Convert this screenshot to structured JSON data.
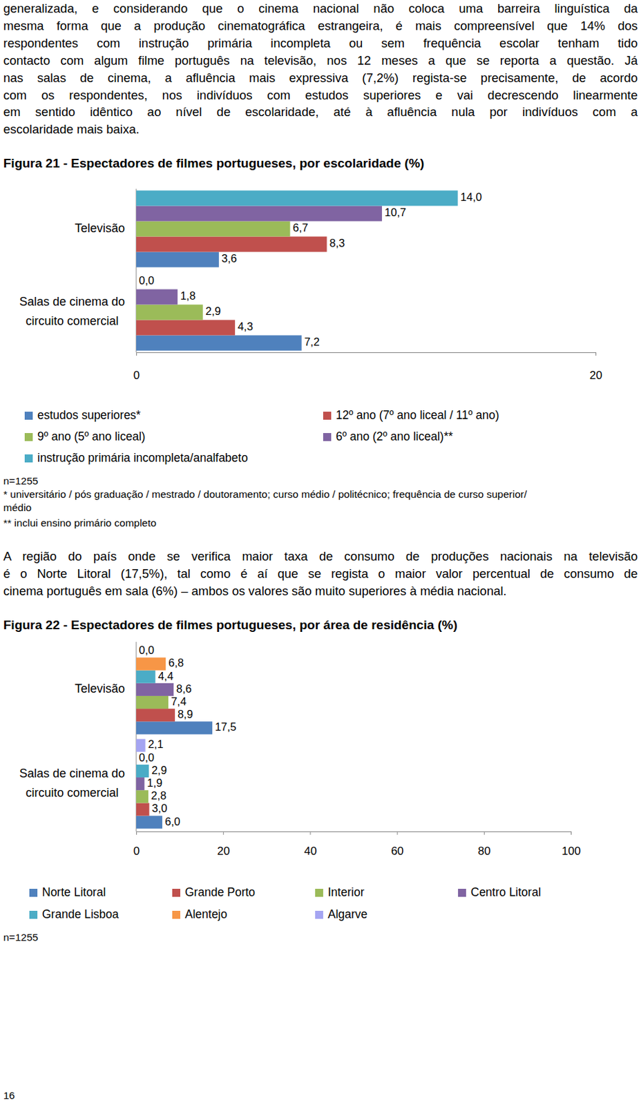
{
  "paragraphs": [
    [
      "generalizada, e considerando que o cinema nacional não coloca uma barreira linguística da",
      "mesma forma que a produção cinematográfica estrangeira, é mais compreensível que 14% dos",
      "respondentes com instrução primária incompleta ou sem frequência escolar tenham tido",
      "contacto com algum filme português na televisão, nos 12 meses a que se reporta a questão. Já",
      "nas salas de cinema, a afluência mais expressiva (7,2%) regista-se precisamente, de acordo",
      "com os respondentes, nos indivíduos com estudos superiores e vai decrescendo linearmente",
      "em sentido idêntico ao nível de escolaridade, até à afluência nula por indivíduos com a",
      "escolaridade mais baixa."
    ],
    [
      "A região do país onde se verifica maior taxa de consumo de produções nacionais na televisão",
      "é o Norte Litoral (17,5%), tal como é aí que se regista o maior valor percentual de consumo de",
      "cinema português em sala (6%) – ambos os valores são muito superiores à média nacional."
    ]
  ],
  "chart_data": [
    {
      "type": "bar",
      "orientation": "horizontal",
      "data_labels": true,
      "legend": "bottom",
      "title": "Figura 21 - Espectadores de filmes portugueses, por escolaridade (%)",
      "categories": [
        "Televisão",
        "Salas de cinema do\ncircuito comercial"
      ],
      "series": [
        {
          "name": "estudos superiores*",
          "color": "#4F81BD",
          "values": [
            3.6,
            7.2
          ],
          "value_labels": [
            "3,6",
            "7,2"
          ]
        },
        {
          "name": "12º ano (7º ano liceal / 11º ano)",
          "color": "#C0504D",
          "values": [
            8.3,
            4.3
          ],
          "value_labels": [
            "8,3",
            "4,3"
          ]
        },
        {
          "name": "9º ano (5º ano liceal)",
          "color": "#9BBB59",
          "values": [
            6.7,
            2.9
          ],
          "value_labels": [
            "6,7",
            "2,9"
          ]
        },
        {
          "name": "6º ano (2º ano liceal)**",
          "color": "#8064A2",
          "values": [
            10.7,
            1.8
          ],
          "value_labels": [
            "10,7",
            "1,8"
          ]
        },
        {
          "name": "instrução primária incompleta/analfabeto",
          "color": "#4BACC6",
          "values": [
            14.0,
            0.0
          ],
          "value_labels": [
            "14,0",
            "0,0"
          ]
        }
      ],
      "xlim": [
        0,
        20
      ],
      "xticks": [
        0,
        20
      ],
      "notes": [
        "n=1255",
        "* universitário / pós graduação / mestrado / doutoramento; curso médio / politécnico; frequência de curso superior/",
        "médio",
        "** inclui ensino primário completo"
      ]
    },
    {
      "type": "bar",
      "orientation": "horizontal",
      "data_labels": true,
      "legend": "bottom",
      "title": "Figura 22 - Espectadores de filmes portugueses, por área de residência (%)",
      "categories": [
        "Televisão",
        "Salas de cinema do\ncircuito comercial"
      ],
      "series": [
        {
          "name": "Norte Litoral",
          "color": "#4F81BD",
          "values": [
            17.5,
            6.0
          ],
          "value_labels": [
            "17,5",
            "6,0"
          ]
        },
        {
          "name": "Grande Porto",
          "color": "#C0504D",
          "values": [
            8.9,
            3.0
          ],
          "value_labels": [
            "8,9",
            "3,0"
          ]
        },
        {
          "name": "Interior",
          "color": "#9BBB59",
          "values": [
            7.4,
            2.8
          ],
          "value_labels": [
            "7,4",
            "2,8"
          ]
        },
        {
          "name": "Centro Litoral",
          "color": "#8064A2",
          "values": [
            8.6,
            1.9
          ],
          "value_labels": [
            "8,6",
            "1,9"
          ]
        },
        {
          "name": "Grande Lisboa",
          "color": "#4BACC6",
          "values": [
            4.4,
            2.9
          ],
          "value_labels": [
            "4,4",
            "2,9"
          ]
        },
        {
          "name": "Alentejo",
          "color": "#F79646",
          "values": [
            6.8,
            0.0
          ],
          "value_labels": [
            "6,8",
            "0,0"
          ]
        },
        {
          "name": "Algarve",
          "color": "#A5A5F2",
          "values": [
            0.0,
            2.1
          ],
          "value_labels": [
            "0,0",
            "2,1"
          ]
        }
      ],
      "xlim": [
        0,
        100
      ],
      "xticks": [
        0,
        20,
        40,
        60,
        80,
        100
      ],
      "notes": [
        "n=1255"
      ]
    }
  ],
  "page_number": "16"
}
